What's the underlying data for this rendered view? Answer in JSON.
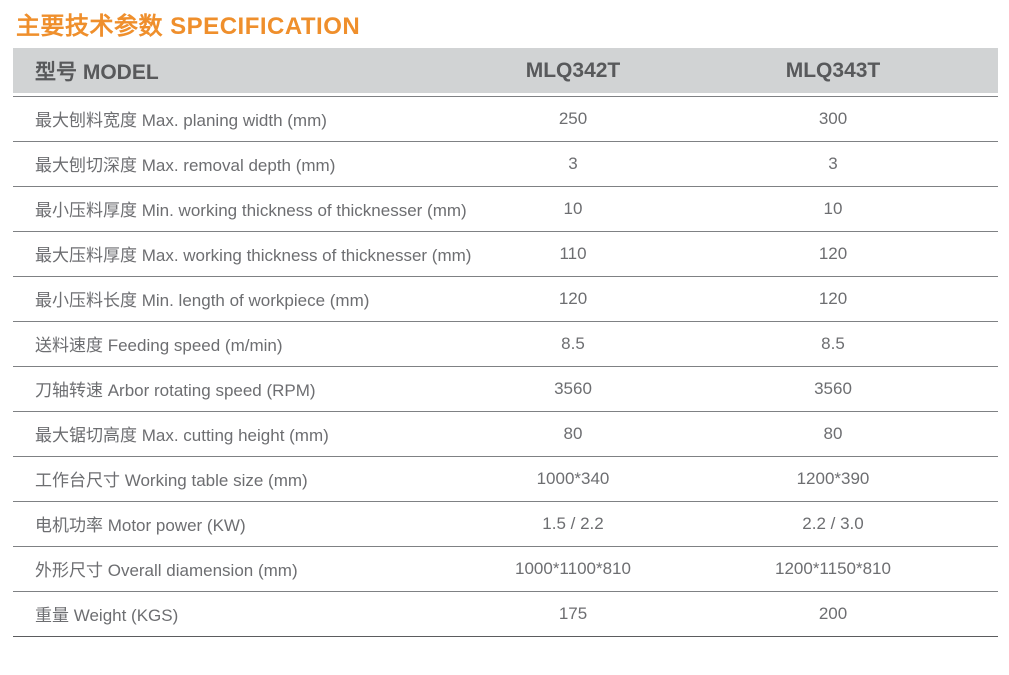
{
  "title": {
    "text": "主要技术参数 SPECIFICATION"
  },
  "colors": {
    "accent_orange": "#EF8F2C",
    "header_background": "#D1D3D4",
    "header_text": "#58595B",
    "body_text": "#6D6E71",
    "row_line": "#7F8184"
  },
  "table": {
    "header": {
      "model_label": "型号 MODEL",
      "models": [
        "MLQ342T",
        "MLQ343T"
      ]
    },
    "rows": [
      {
        "label": "最大刨料宽度 Max. planing width (mm)",
        "values": [
          "250",
          "300"
        ]
      },
      {
        "label": "最大刨切深度 Max. removal depth (mm)",
        "values": [
          "3",
          "3"
        ]
      },
      {
        "label": "最小压料厚度 Min. working thickness of thicknesser (mm)",
        "values": [
          "10",
          "10"
        ]
      },
      {
        "label": "最大压料厚度 Max. working thickness of thicknesser (mm)",
        "values": [
          "110",
          "120"
        ]
      },
      {
        "label": "最小压料长度 Min. length of workpiece (mm)",
        "values": [
          "120",
          "120"
        ]
      },
      {
        "label": "送料速度 Feeding speed (m/min)",
        "values": [
          "8.5",
          "8.5"
        ]
      },
      {
        "label": "刀轴转速 Arbor rotating speed (RPM)",
        "values": [
          "3560",
          "3560"
        ]
      },
      {
        "label": "最大锯切高度 Max. cutting height (mm)",
        "values": [
          "80",
          "80"
        ]
      },
      {
        "label": "工作台尺寸 Working table size (mm)",
        "values": [
          "1000*340",
          "1200*390"
        ]
      },
      {
        "label": "电机功率 Motor power (KW)",
        "values": [
          "1.5 / 2.2",
          "2.2 / 3.0"
        ]
      },
      {
        "label": "外形尺寸 Overall diamension (mm)",
        "values": [
          "1000*1100*810",
          "1200*1150*810"
        ]
      },
      {
        "label": "重量 Weight (KGS)",
        "values": [
          "175",
          "200"
        ]
      }
    ]
  }
}
